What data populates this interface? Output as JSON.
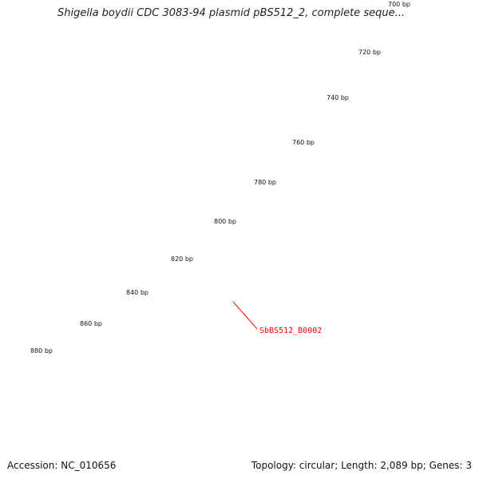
{
  "title": "Shigella boydii CDC 3083-94 plasmid pBS512_2, complete seque...",
  "footer": {
    "accession": "Accession: NC_010656",
    "summary": "Topology: circular; Length: 2,089 bp; Genes: 3"
  },
  "map": {
    "tick_labels": [
      "700 bp",
      "720 bp",
      "740 bp",
      "760 bp",
      "780 bp",
      "800 bp",
      "820 bp",
      "840 bp",
      "860 bp",
      "880 bp"
    ],
    "gene_label": "SbBS512_B0002",
    "colors": {
      "backbone": "#8c8a8c",
      "forward_gene": "#ff0000",
      "reverse_gene": "#ff1493",
      "ticks": "#2a7a1a",
      "label_line": "#ff0000"
    }
  }
}
